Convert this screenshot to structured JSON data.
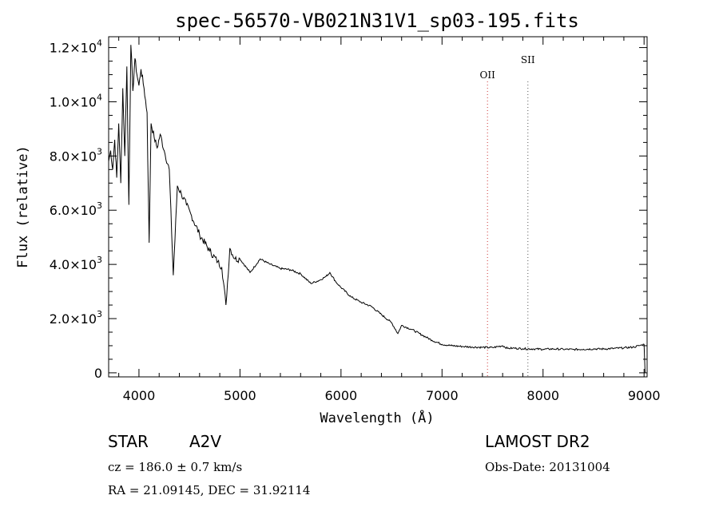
{
  "chart_data": {
    "type": "line",
    "title": "spec-56570-VB021N31V1_sp03-195.fits",
    "xlabel": "Wavelength (Å)",
    "ylabel": "Flux (relative)",
    "xlim": [
      3700,
      9030
    ],
    "ylim": [
      -150,
      12400
    ],
    "x_ticks": [
      4000,
      5000,
      6000,
      7000,
      8000,
      9000
    ],
    "y_ticks": [
      {
        "value": 0,
        "mantissa": "0",
        "exp": ""
      },
      {
        "value": 2000,
        "mantissa": "2.0×10",
        "exp": "3"
      },
      {
        "value": 4000,
        "mantissa": "4.0×10",
        "exp": "3"
      },
      {
        "value": 6000,
        "mantissa": "6.0×10",
        "exp": "3"
      },
      {
        "value": 8000,
        "mantissa": "8.0×10",
        "exp": "3"
      },
      {
        "value": 10000,
        "mantissa": "1.0×10",
        "exp": "4"
      },
      {
        "value": 12000,
        "mantissa": "1.2×10",
        "exp": "4"
      }
    ],
    "grid": false,
    "lines": [
      {
        "label": "OII",
        "wavelength": 7450,
        "color": "#cc3333",
        "style": "dotted"
      },
      {
        "label": "SII",
        "wavelength": 7850,
        "color": "#555555",
        "style": "dotted"
      }
    ],
    "series": [
      {
        "x": [
          3700,
          3720,
          3740,
          3760,
          3780,
          3800,
          3820,
          3840,
          3860,
          3880,
          3900,
          3920,
          3940,
          3960,
          3980,
          4000,
          4020,
          4050,
          4080,
          4101,
          4120,
          4150,
          4180,
          4210,
          4250,
          4300,
          4340,
          4380,
          4420,
          4470,
          4520,
          4600,
          4700,
          4780,
          4820,
          4861,
          4900,
          4950,
          5000,
          5100,
          5200,
          5300,
          5400,
          5500,
          5600,
          5700,
          5780,
          5850,
          5890,
          5950,
          6000,
          6100,
          6200,
          6300,
          6400,
          6500,
          6563,
          6600,
          6700,
          6800,
          6900,
          7000,
          7100,
          7200,
          7300,
          7400,
          7500,
          7600,
          7650,
          7700,
          7800,
          7900,
          8000,
          8100,
          8200,
          8300,
          8400,
          8500,
          8600,
          8700,
          8800,
          8900,
          8950,
          9000
        ],
        "y": [
          7800,
          8200,
          7500,
          8600,
          7200,
          9200,
          7000,
          10500,
          8000,
          11300,
          6200,
          12100,
          10400,
          11600,
          11000,
          10600,
          11200,
          10500,
          9600,
          4800,
          9200,
          8700,
          8300,
          8800,
          8200,
          7500,
          3600,
          6900,
          6600,
          6200,
          5800,
          5100,
          4500,
          4100,
          3900,
          2500,
          4600,
          4200,
          4200,
          3700,
          4200,
          4000,
          3850,
          3800,
          3650,
          3300,
          3400,
          3550,
          3700,
          3350,
          3150,
          2800,
          2600,
          2450,
          2150,
          1850,
          1450,
          1750,
          1600,
          1400,
          1200,
          1050,
          1000,
          970,
          950,
          940,
          930,
          1000,
          900,
          910,
          890,
          880,
          870,
          880,
          870,
          860,
          870,
          880,
          880,
          900,
          920,
          950,
          1000,
          1050
        ]
      }
    ]
  },
  "footer": {
    "object_class": "STAR",
    "subclass": "A2V",
    "survey": "LAMOST DR2",
    "cz": "cz = 186.0 ± 0.7 km/s",
    "obs_date": "Obs-Date: 20131004",
    "coords": "RA =  21.09145, DEC =  31.92114"
  }
}
